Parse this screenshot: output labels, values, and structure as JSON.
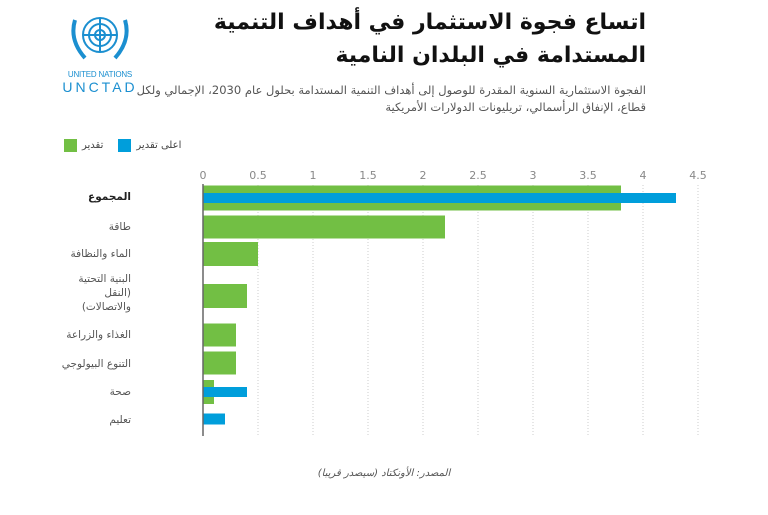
{
  "logo": {
    "line1": "UNITED NATIONS",
    "line2": "UNCTAD"
  },
  "title": "اتساع فجوة الاستثمار في أهداف التنمية المستدامة في البلدان النامية",
  "subtitle": "الفجوة الاستثمارية السنوية المقدرة للوصول إلى أهداف التنمية المستدامة بحلول عام 2030، الإجمالي ولكل قطاع، الإنفاق الرأسمالي، تريليونات الدولارات الأمريكية",
  "source": "المصدر: الأونكتاد (سيصدر قريبا)",
  "colors": {
    "estimate": "#72bf44",
    "high_estimate": "#009edb"
  },
  "chart_data": {
    "type": "bar",
    "orientation": "horizontal",
    "legend_position": "top-left",
    "grid": true,
    "xlim": [
      0,
      4.5
    ],
    "ticks": [
      "0",
      "0.5",
      "1",
      "1.5",
      "2",
      "2.5",
      "3",
      "3.5",
      "4",
      "4.5"
    ],
    "categories": [
      "المجموع",
      "طاقة",
      "الماء والنظافة",
      "البنية التحتية (النقل والاتصالات)",
      "الغذاء والزراعة",
      "التنوع البيولوجي",
      "صحة",
      "تعليم"
    ],
    "series": [
      {
        "name": "تقدير",
        "color": "#72bf44",
        "values": [
          3.8,
          2.2,
          0.5,
          0.4,
          0.3,
          0.3,
          0.1,
          null
        ]
      },
      {
        "name": "اعلى تقدير",
        "color": "#009edb",
        "values": [
          4.3,
          null,
          null,
          null,
          null,
          null,
          0.4,
          0.2
        ]
      }
    ]
  }
}
